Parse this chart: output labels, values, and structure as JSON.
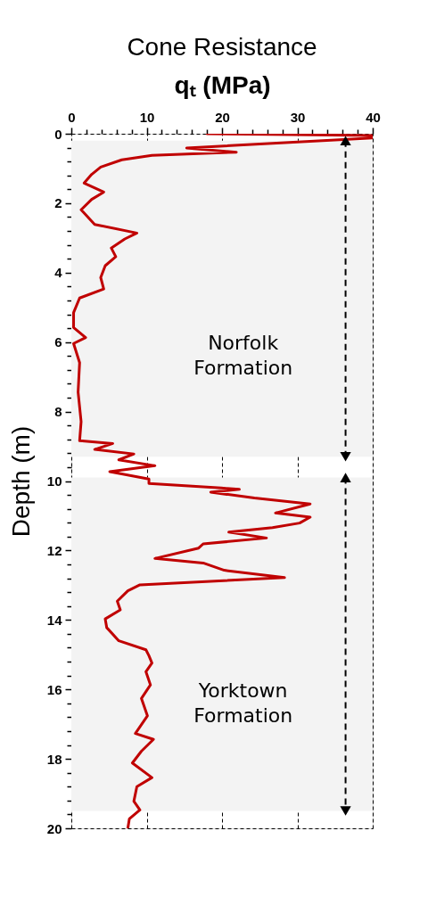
{
  "chart_data": {
    "type": "line",
    "title": "Cone Resistance",
    "xlabel": "qₜ (MPa)",
    "ylabel": "Depth (m)",
    "xlim": [
      0,
      40
    ],
    "ylim": [
      20,
      0
    ],
    "xticks": [
      0,
      {
        "value": 2,
        "label": null
      },
      {
        "value": 4,
        "label": null
      },
      {
        "value": 6,
        "label": null
      },
      {
        "value": 8,
        "label": null
      },
      10,
      {
        "value": 12,
        "label": null
      },
      {
        "value": 14,
        "label": null
      },
      {
        "value": 16,
        "label": null
      },
      {
        "value": 18,
        "label": null
      },
      20,
      {
        "value": 22,
        "label": null
      },
      {
        "value": 24,
        "label": null
      },
      {
        "value": 26,
        "label": null
      },
      {
        "value": 28,
        "label": null
      },
      30,
      {
        "value": 32,
        "label": null
      },
      {
        "value": 34,
        "label": null
      },
      {
        "value": 36,
        "label": null
      },
      {
        "value": 38,
        "label": null
      },
      40
    ],
    "yticks": [
      0,
      {
        "value": 0.4,
        "label": null
      },
      {
        "value": 0.8,
        "label": null
      },
      {
        "value": 1.2,
        "label": null
      },
      {
        "value": 1.6,
        "label": null
      },
      2,
      {
        "value": 2.4,
        "label": null
      },
      {
        "value": 2.8,
        "label": null
      },
      {
        "value": 3.2,
        "label": null
      },
      {
        "value": 3.6,
        "label": null
      },
      4,
      {
        "value": 4.4,
        "label": null
      },
      {
        "value": 4.8,
        "label": null
      },
      {
        "value": 5.2,
        "label": null
      },
      {
        "value": 5.6,
        "label": null
      },
      6,
      {
        "value": 6.4,
        "label": null
      },
      {
        "value": 6.8,
        "label": null
      },
      {
        "value": 7.2,
        "label": null
      },
      {
        "value": 7.6,
        "label": null
      },
      8,
      {
        "value": 8.4,
        "label": null
      },
      {
        "value": 8.8,
        "label": null
      },
      {
        "value": 9.2,
        "label": null
      },
      {
        "value": 9.6,
        "label": null
      },
      10,
      {
        "value": 10.4,
        "label": null
      },
      {
        "value": 10.8,
        "label": null
      },
      {
        "value": 11.2,
        "label": null
      },
      {
        "value": 11.6,
        "label": null
      },
      12,
      {
        "value": 12.4,
        "label": null
      },
      {
        "value": 12.8,
        "label": null
      },
      {
        "value": 13.2,
        "label": null
      },
      {
        "value": 13.6,
        "label": null
      },
      14,
      {
        "value": 14.4,
        "label": null
      },
      {
        "value": 14.8,
        "label": null
      },
      {
        "value": 15.2,
        "label": null
      },
      {
        "value": 15.6,
        "label": null
      },
      16,
      {
        "value": 16.4,
        "label": null
      },
      {
        "value": 16.8,
        "label": null
      },
      {
        "value": 17.2,
        "label": null
      },
      {
        "value": 17.6,
        "label": null
      },
      18,
      {
        "value": 18.4,
        "label": null
      },
      {
        "value": 18.8,
        "label": null
      },
      {
        "value": 19.2,
        "label": null
      },
      {
        "value": 19.6,
        "label": null
      },
      20
    ],
    "grid": true,
    "series": [
      {
        "color": "#c00000",
        "x": [
          18,
          40,
          40,
          15.3,
          21.9,
          10.7,
          6.7,
          3.9,
          2.7,
          1.7,
          4.3,
          2.7,
          1.3,
          3.1,
          8.7,
          7.1,
          5.3,
          5.9,
          4.5,
          3.9,
          4.3,
          1.1,
          0.3,
          0.3,
          1.9,
          0.3,
          1.1,
          0.9,
          1.3,
          1.1,
          5.5,
          3.1,
          8.3,
          6.3,
          11.1,
          5.1,
          10.3,
          10.3,
          19.9,
          22.3,
          18.5,
          24.3,
          31.7,
          27.1,
          31.7,
          30.3,
          26.7,
          20.9,
          25.9,
          17.5,
          16.9,
          11.1,
          17.5,
          20.3,
          28.3,
          9.1,
          7.5,
          6.1,
          6.5,
          4.5,
          4.7,
          6.3,
          9.9,
          10.3,
          10.7,
          9.9,
          10.5,
          9.3,
          10.1,
          8.5,
          10.9,
          9.3,
          8.1,
          10.7,
          8.7,
          8.3,
          9.1,
          7.7,
          7.5
        ],
        "values": [
          0,
          0.05,
          0.12,
          0.41,
          0.53,
          0.62,
          0.75,
          0.96,
          1.17,
          1.42,
          1.68,
          1.89,
          2.19,
          2.61,
          2.86,
          3.03,
          3.29,
          3.54,
          3.8,
          4.14,
          4.47,
          4.73,
          5.15,
          5.58,
          5.87,
          6.04,
          6.59,
          7.44,
          8.29,
          8.84,
          8.92,
          9.09,
          9.22,
          9.39,
          9.56,
          9.73,
          9.94,
          10.07,
          10.2,
          10.24,
          10.32,
          10.49,
          10.66,
          10.92,
          11.04,
          11.21,
          11.34,
          11.47,
          11.64,
          11.81,
          11.93,
          12.23,
          12.36,
          12.57,
          12.78,
          12.99,
          13.16,
          13.46,
          13.71,
          13.97,
          14.22,
          14.6,
          14.86,
          15.03,
          15.24,
          15.49,
          15.87,
          16.26,
          16.76,
          17.27,
          17.44,
          17.78,
          18.12,
          18.54,
          18.8,
          19.22,
          19.47,
          19.73,
          20
        ]
      }
    ],
    "bands": [
      {
        "axis": "y",
        "from": 0.2,
        "to": 9.3,
        "label": "Norfolk\nFormation",
        "color": "#f3f3f3"
      },
      {
        "axis": "y",
        "from": 9.9,
        "to": 19.5,
        "label": "Yorktown\nFormation",
        "color": "#f3f3f3"
      }
    ]
  }
}
